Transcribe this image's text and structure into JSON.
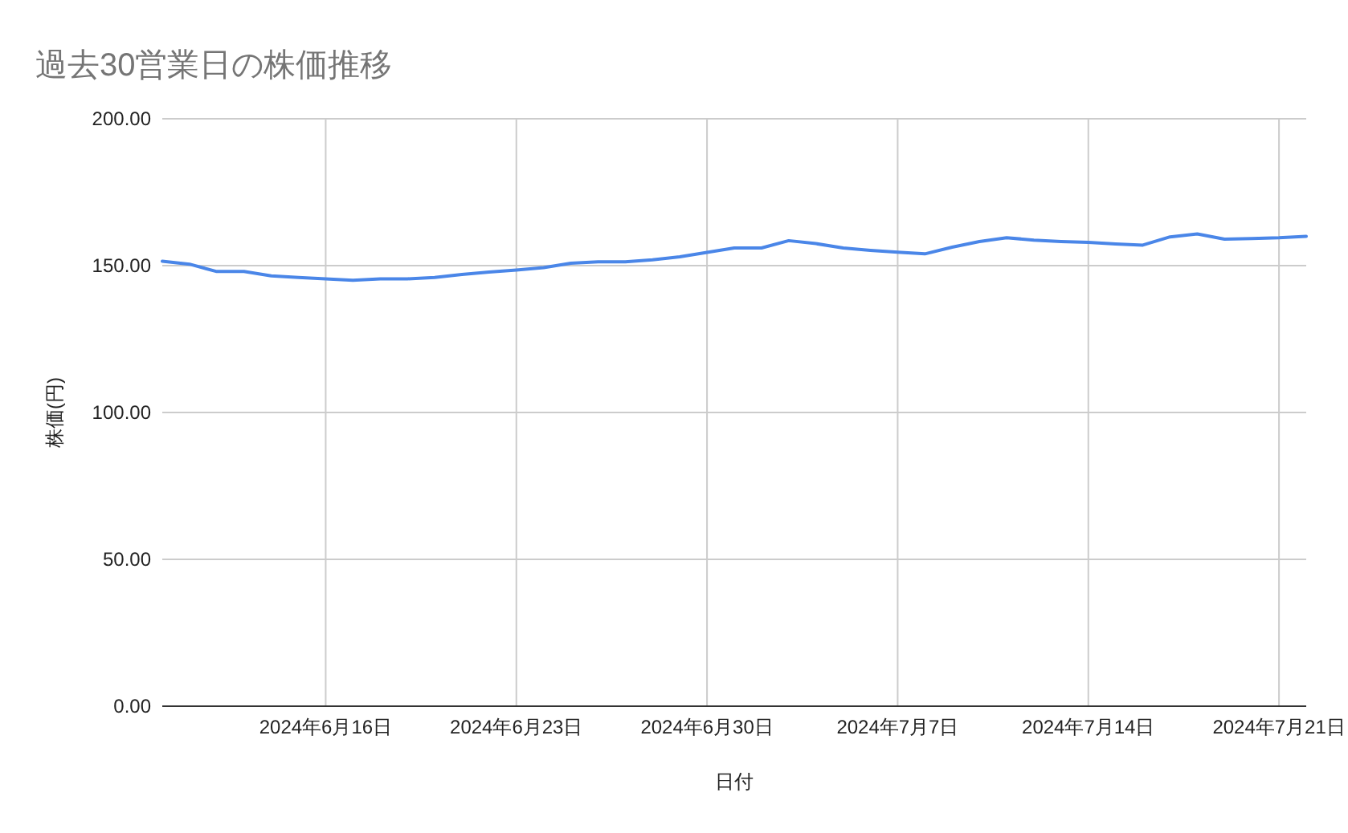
{
  "chart_data": {
    "type": "line",
    "title": "過去30営業日の株価推移",
    "xlabel": "日付",
    "ylabel": "株価(円)",
    "x": [
      "2024-06-10",
      "2024-06-11",
      "2024-06-12",
      "2024-06-13",
      "2024-06-14",
      "2024-06-15",
      "2024-06-16",
      "2024-06-17",
      "2024-06-18",
      "2024-06-19",
      "2024-06-20",
      "2024-06-21",
      "2024-06-22",
      "2024-06-23",
      "2024-06-24",
      "2024-06-25",
      "2024-06-26",
      "2024-06-27",
      "2024-06-28",
      "2024-06-29",
      "2024-06-30",
      "2024-07-01",
      "2024-07-02",
      "2024-07-03",
      "2024-07-04",
      "2024-07-05",
      "2024-07-06",
      "2024-07-07",
      "2024-07-08",
      "2024-07-09",
      "2024-07-10",
      "2024-07-11",
      "2024-07-12",
      "2024-07-13",
      "2024-07-14",
      "2024-07-15",
      "2024-07-16",
      "2024-07-17",
      "2024-07-18",
      "2024-07-19",
      "2024-07-20",
      "2024-07-21",
      "2024-07-22"
    ],
    "series": [
      {
        "color": "#4a86e8",
        "values": [
          151.5,
          150.5,
          148,
          148,
          146.5,
          146,
          145.5,
          145,
          145.5,
          145.5,
          146,
          147,
          147.8,
          148.5,
          149.3,
          150.8,
          151.3,
          151.3,
          152,
          153,
          154.5,
          156,
          156,
          158.5,
          157.5,
          156,
          155.2,
          154.6,
          154,
          156.3,
          158.2,
          159.5,
          158.7,
          158.2,
          157.9,
          157.4,
          157,
          159.8,
          160.8,
          159,
          159.2,
          159.5,
          160
        ]
      }
    ],
    "xlim": [
      "2024-06-10",
      "2024-07-22"
    ],
    "ylim": [
      0,
      200
    ],
    "xticks": [
      {
        "value": "2024-06-16",
        "label": "2024年6月16日"
      },
      {
        "value": "2024-06-23",
        "label": "2024年6月23日"
      },
      {
        "value": "2024-06-30",
        "label": "2024年6月30日"
      },
      {
        "value": "2024-07-07",
        "label": "2024年7月7日"
      },
      {
        "value": "2024-07-14",
        "label": "2024年7月14日"
      },
      {
        "value": "2024-07-21",
        "label": "2024年7月21日"
      }
    ],
    "yticks": [
      {
        "value": 0,
        "label": "0.00"
      },
      {
        "value": 50,
        "label": "50.00"
      },
      {
        "value": 100,
        "label": "100.00"
      },
      {
        "value": 150,
        "label": "150.00"
      },
      {
        "value": 200,
        "label": "200.00"
      }
    ],
    "grid": true
  }
}
